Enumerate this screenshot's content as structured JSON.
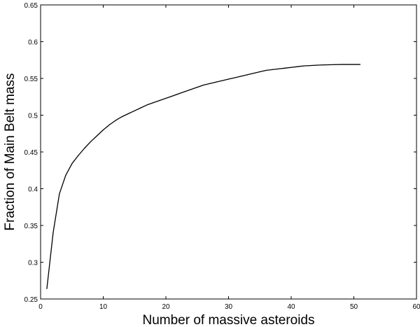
{
  "chart_data": {
    "type": "line",
    "title": "",
    "xlabel": "Number of massive asteroids",
    "ylabel": "Fraction of Main Belt mass",
    "xlim": [
      0,
      60
    ],
    "ylim": [
      0.25,
      0.65
    ],
    "grid": false,
    "xticks": [
      "0",
      "10",
      "20",
      "30",
      "40",
      "50",
      "60"
    ],
    "yticks": [
      "0.25",
      "0.3",
      "0.35",
      "0.4",
      "0.45",
      "0.5",
      "0.55",
      "0.6",
      "0.65"
    ],
    "series": [
      {
        "name": "",
        "color": "#000000",
        "x": [
          1,
          2,
          3,
          4,
          5,
          6,
          7,
          8,
          9,
          10,
          11,
          12,
          13,
          14,
          15,
          16,
          17,
          18,
          19,
          20,
          21,
          22,
          23,
          24,
          25,
          26,
          27,
          28,
          29,
          30,
          31,
          32,
          33,
          34,
          35,
          36,
          37,
          38,
          39,
          40,
          41,
          42,
          43,
          44,
          45,
          46,
          47,
          48,
          49,
          50,
          51
        ],
        "y": [
          0.264,
          0.34,
          0.393,
          0.418,
          0.434,
          0.445,
          0.455,
          0.464,
          0.472,
          0.48,
          0.487,
          0.493,
          0.498,
          0.502,
          0.506,
          0.51,
          0.514,
          0.517,
          0.52,
          0.523,
          0.526,
          0.529,
          0.532,
          0.535,
          0.538,
          0.541,
          0.543,
          0.545,
          0.547,
          0.549,
          0.551,
          0.553,
          0.555,
          0.557,
          0.559,
          0.561,
          0.562,
          0.563,
          0.564,
          0.565,
          0.566,
          0.567,
          0.5675,
          0.568,
          0.5683,
          0.5686,
          0.5688,
          0.569,
          0.569,
          0.569,
          0.569
        ]
      }
    ]
  }
}
